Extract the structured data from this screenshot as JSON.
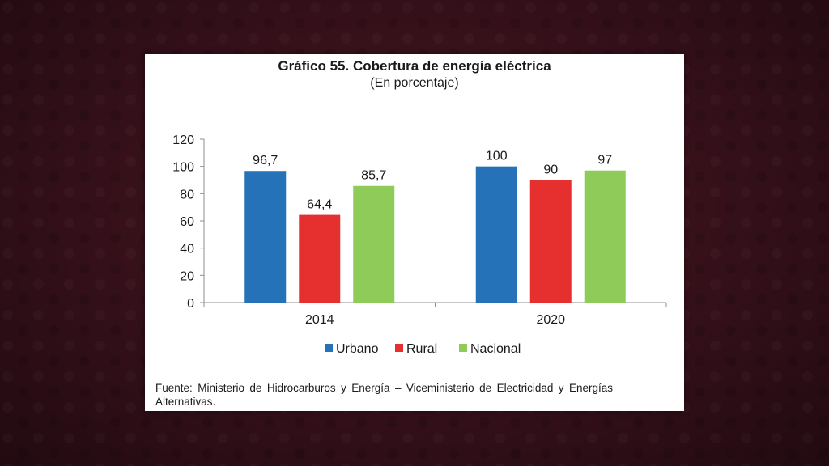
{
  "title": "Gráfico 55. Cobertura de energía eléctrica",
  "subtitle": "(En porcentaje)",
  "source": "Fuente: Ministerio de Hidrocarburos y Energía – Viceministerio de Electricidad y Energías Alternativas.",
  "colors": {
    "Urbano": "#2672b8",
    "Rural": "#e63030",
    "Nacional": "#8fcb58"
  },
  "chart_data": {
    "type": "bar",
    "categories": [
      "2014",
      "2020"
    ],
    "series": [
      {
        "name": "Urbano",
        "values": [
          96.7,
          100
        ],
        "labels": [
          "96,7",
          "100"
        ]
      },
      {
        "name": "Rural",
        "values": [
          64.4,
          90
        ],
        "labels": [
          "64,4",
          "90"
        ]
      },
      {
        "name": "Nacional",
        "values": [
          85.7,
          97
        ],
        "labels": [
          "85,7",
          "97"
        ]
      }
    ],
    "ylim": [
      0,
      120
    ],
    "yticks": [
      0,
      20,
      40,
      60,
      80,
      100,
      120
    ],
    "grid": false,
    "legend": "bottom"
  }
}
